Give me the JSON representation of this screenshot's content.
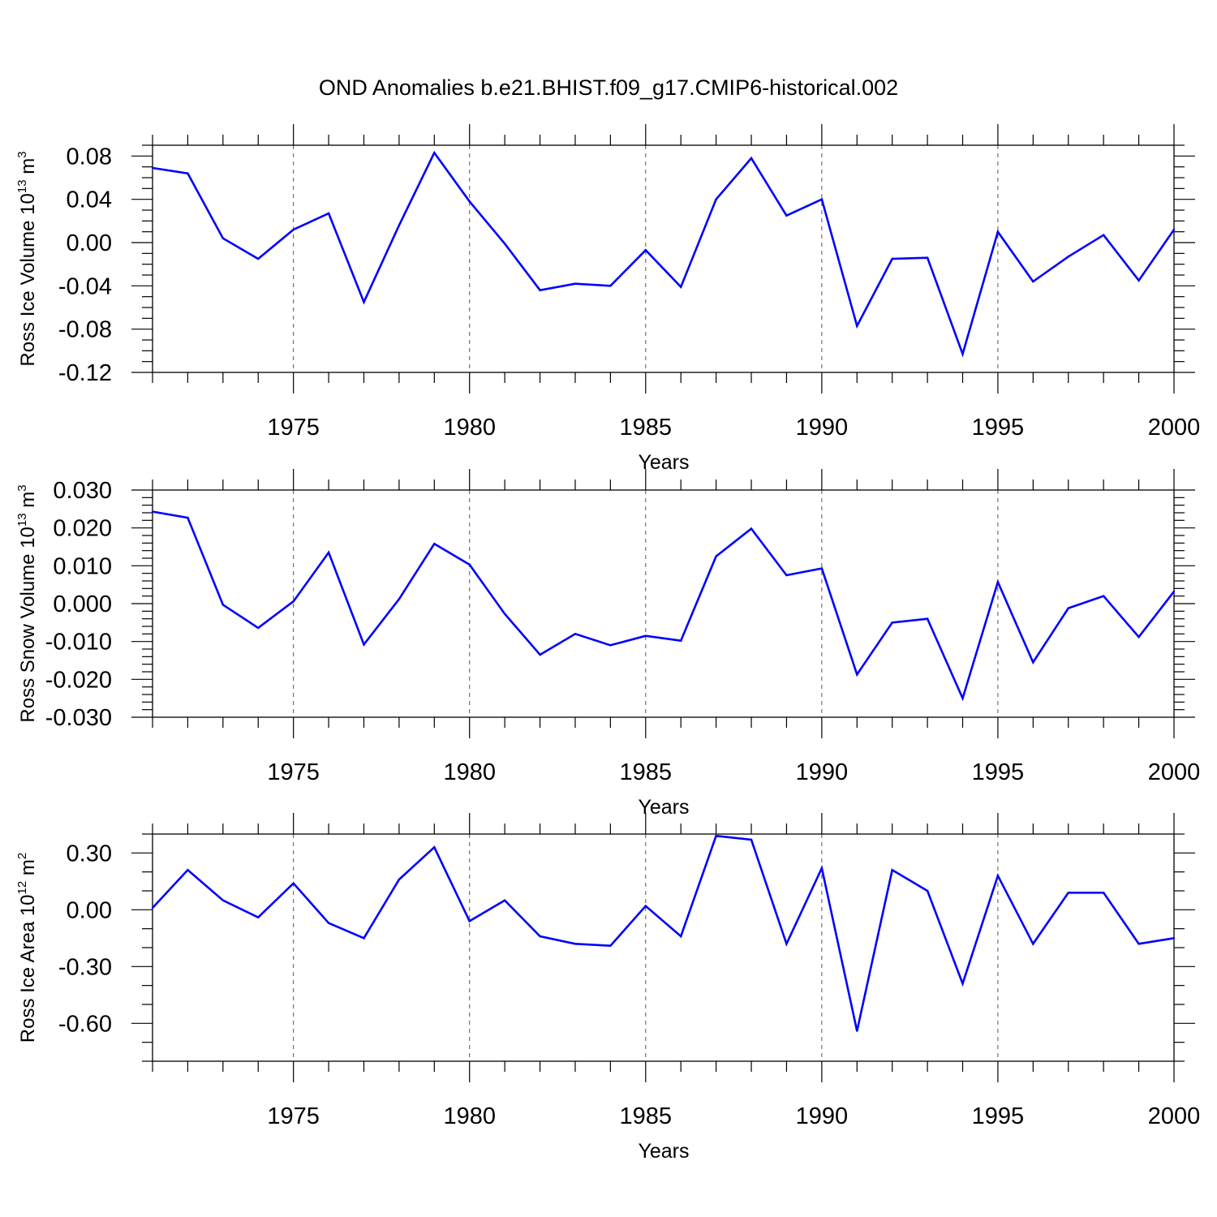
{
  "figure": {
    "title": "OND Anomalies b.e21.BHIST.f09_g17.CMIP6-historical.002"
  },
  "chart_data": [
    {
      "type": "line",
      "ylabel": "Ross Ice Volume 10",
      "ylabel_exp": "13",
      "ylabel_unit": " m",
      "ylabel_unit_exp": "3",
      "xlabel": "Years",
      "xlim": [
        1971,
        2000
      ],
      "ylim": [
        -0.12,
        0.09
      ],
      "yticks": [
        -0.12,
        -0.08,
        -0.04,
        0.0,
        0.04,
        0.08
      ],
      "ytick_labels": [
        "-0.12",
        "-0.08",
        "-0.04",
        "0.00",
        "0.04",
        "0.08"
      ],
      "yminor": 0.01,
      "xticks": [
        1975,
        1980,
        1985,
        1990,
        1995,
        2000
      ],
      "xtick_labels": [
        "1975",
        "1980",
        "1985",
        "1990",
        "1995",
        "2000"
      ],
      "grid": "vertical dashed at major x ticks",
      "line_color": "#0000ff",
      "x": [
        1971,
        1972,
        1973,
        1974,
        1975,
        1976,
        1977,
        1978,
        1979,
        1980,
        1981,
        1982,
        1983,
        1984,
        1985,
        1986,
        1987,
        1988,
        1989,
        1990,
        1991,
        1992,
        1993,
        1994,
        1995,
        1996,
        1997,
        1998,
        1999,
        2000
      ],
      "values": [
        0.069,
        0.064,
        0.004,
        -0.015,
        0.012,
        0.027,
        -0.055,
        0.016,
        0.083,
        0.038,
        -0.001,
        -0.044,
        -0.038,
        -0.04,
        -0.007,
        -0.041,
        0.04,
        0.078,
        0.025,
        0.04,
        -0.077,
        -0.015,
        -0.014,
        -0.103,
        0.01,
        -0.036,
        -0.013,
        0.007,
        -0.035,
        0.012
      ]
    },
    {
      "type": "line",
      "ylabel": "Ross Snow Volume 10",
      "ylabel_exp": "13",
      "ylabel_unit": " m",
      "ylabel_unit_exp": "3",
      "xlabel": "Years",
      "xlim": [
        1971,
        2000
      ],
      "ylim": [
        -0.03,
        0.03
      ],
      "yticks": [
        -0.03,
        -0.02,
        -0.01,
        0.0,
        0.01,
        0.02,
        0.03
      ],
      "ytick_labels": [
        "-0.030",
        "-0.020",
        "-0.010",
        "0.000",
        "0.010",
        "0.020",
        "0.030"
      ],
      "yminor": 0.002,
      "xticks": [
        1975,
        1980,
        1985,
        1990,
        1995,
        2000
      ],
      "xtick_labels": [
        "1975",
        "1980",
        "1985",
        "1990",
        "1995",
        "2000"
      ],
      "grid": "vertical dashed at major x ticks",
      "line_color": "#0000ff",
      "x": [
        1971,
        1972,
        1973,
        1974,
        1975,
        1976,
        1977,
        1978,
        1979,
        1980,
        1981,
        1982,
        1983,
        1984,
        1985,
        1986,
        1987,
        1988,
        1989,
        1990,
        1991,
        1992,
        1993,
        1994,
        1995,
        1996,
        1997,
        1998,
        1999,
        2000
      ],
      "values": [
        0.0243,
        0.0227,
        -0.0003,
        -0.0064,
        0.0006,
        0.0135,
        -0.0108,
        0.0012,
        0.0158,
        0.0103,
        -0.0027,
        -0.0135,
        -0.008,
        -0.011,
        -0.0085,
        -0.0098,
        0.0125,
        0.0198,
        0.0075,
        0.0093,
        -0.0187,
        -0.005,
        -0.004,
        -0.025,
        0.0057,
        -0.0155,
        -0.0012,
        0.002,
        -0.0088,
        0.0032
      ]
    },
    {
      "type": "line",
      "ylabel": "Ross Ice Area 10",
      "ylabel_exp": "12",
      "ylabel_unit": " m",
      "ylabel_unit_exp": "2",
      "xlabel": "Years",
      "xlim": [
        1971,
        2000
      ],
      "ylim": [
        -0.8,
        0.4
      ],
      "yticks": [
        -0.6,
        -0.3,
        0.0,
        0.3
      ],
      "ytick_labels": [
        "-0.60",
        "-0.30",
        "0.00",
        "0.30"
      ],
      "yminor": 0.1,
      "xticks": [
        1975,
        1980,
        1985,
        1990,
        1995,
        2000
      ],
      "xtick_labels": [
        "1975",
        "1980",
        "1985",
        "1990",
        "1995",
        "2000"
      ],
      "grid": "vertical dashed at major x ticks",
      "line_color": "#0000ff",
      "x": [
        1971,
        1972,
        1973,
        1974,
        1975,
        1976,
        1977,
        1978,
        1979,
        1980,
        1981,
        1982,
        1983,
        1984,
        1985,
        1986,
        1987,
        1988,
        1989,
        1990,
        1991,
        1992,
        1993,
        1994,
        1995,
        1996,
        1997,
        1998,
        1999,
        2000
      ],
      "values": [
        0.01,
        0.21,
        0.05,
        -0.04,
        0.14,
        -0.07,
        -0.15,
        0.16,
        0.33,
        -0.06,
        0.05,
        -0.14,
        -0.18,
        -0.19,
        0.02,
        -0.14,
        0.39,
        0.37,
        -0.18,
        0.22,
        -0.64,
        0.21,
        0.1,
        -0.39,
        0.18,
        -0.18,
        0.09,
        0.09,
        -0.18,
        -0.15
      ]
    }
  ]
}
